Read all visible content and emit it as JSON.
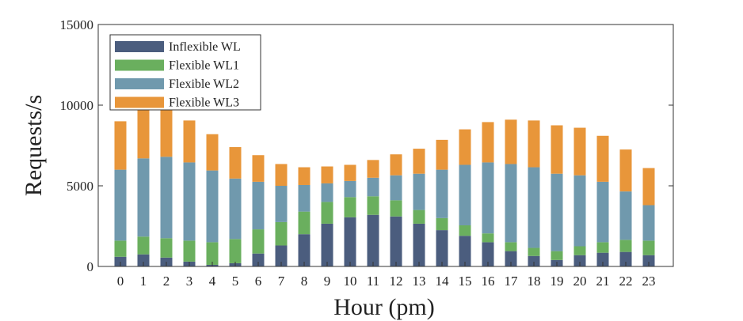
{
  "chart_data": {
    "type": "bar",
    "stacked": true,
    "title": "",
    "xlabel": "Hour (pm)",
    "ylabel": "Requests/s",
    "ylim": [
      0,
      15000
    ],
    "yticks": [
      0,
      5000,
      10000,
      15000
    ],
    "categories": [
      "0",
      "1",
      "2",
      "3",
      "4",
      "5",
      "6",
      "7",
      "8",
      "9",
      "10",
      "11",
      "12",
      "13",
      "14",
      "15",
      "16",
      "17",
      "18",
      "19",
      "20",
      "21",
      "22",
      "23"
    ],
    "legend_position": "top-left",
    "series": [
      {
        "name": "Inflexible WL",
        "color": "#4b5d7e",
        "values": [
          600,
          750,
          550,
          300,
          100,
          200,
          800,
          1300,
          2000,
          2650,
          3050,
          3200,
          3100,
          2650,
          2250,
          1900,
          1500,
          950,
          650,
          400,
          700,
          850,
          900,
          700
        ]
      },
      {
        "name": "Flexible WL1",
        "color": "#6aaf5e",
        "values": [
          1000,
          1100,
          1200,
          1300,
          1400,
          1500,
          1500,
          1450,
          1400,
          1350,
          1250,
          1150,
          1000,
          850,
          750,
          650,
          550,
          550,
          500,
          550,
          550,
          650,
          750,
          900
        ]
      },
      {
        "name": "Flexible WL2",
        "color": "#7099ad",
        "values": [
          4400,
          4850,
          5050,
          4850,
          4450,
          3750,
          2950,
          2250,
          1650,
          1150,
          1000,
          1150,
          1550,
          2250,
          3000,
          3750,
          4400,
          4850,
          5000,
          4800,
          4400,
          3750,
          3000,
          2200
        ]
      },
      {
        "name": "Flexible WL3",
        "color": "#e8963a",
        "values": [
          3000,
          3000,
          2950,
          2600,
          2250,
          1950,
          1650,
          1350,
          1100,
          1050,
          1000,
          1100,
          1300,
          1550,
          1850,
          2200,
          2500,
          2750,
          2900,
          3000,
          2950,
          2850,
          2600,
          2300
        ]
      }
    ]
  }
}
